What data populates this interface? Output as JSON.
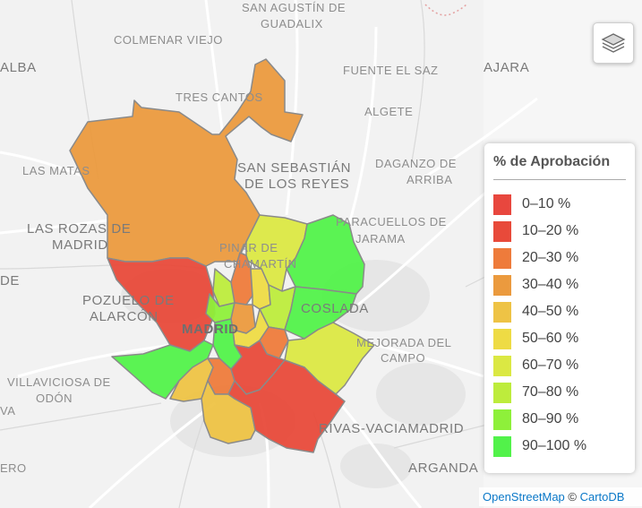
{
  "places": [
    {
      "id": "san-agustin",
      "text": "SAN AGUSTÍN DE"
    },
    {
      "id": "guadalix",
      "text": "GUADALIX"
    },
    {
      "id": "colmenar-viejo",
      "text": "COLMENAR VIEJO"
    },
    {
      "id": "alba",
      "text": "ALBA"
    },
    {
      "id": "fuente-el-saz",
      "text": "FUENTE EL SAZ"
    },
    {
      "id": "ajara",
      "text": "AJARA"
    },
    {
      "id": "tres-cantos",
      "text": "TRES CANTOS"
    },
    {
      "id": "algete",
      "text": "ALGETE"
    },
    {
      "id": "las-matas",
      "text": "LAS MATAS"
    },
    {
      "id": "san-sebastian-1",
      "text": "SAN SEBASTIÁN"
    },
    {
      "id": "san-sebastian-2",
      "text": "DE LOS REYES"
    },
    {
      "id": "daganzo-1",
      "text": "DAGANZO DE"
    },
    {
      "id": "daganzo-2",
      "text": "ARRIBA"
    },
    {
      "id": "las-rozas-1",
      "text": "LAS ROZAS DE"
    },
    {
      "id": "las-rozas-2",
      "text": "MADRID"
    },
    {
      "id": "paracuellos-1",
      "text": "PARACUELLOS DE"
    },
    {
      "id": "paracuellos-2",
      "text": "JARAMA"
    },
    {
      "id": "pinar-1",
      "text": "PINAR DE"
    },
    {
      "id": "pinar-2",
      "text": "CHAMARTÍN"
    },
    {
      "id": "de",
      "text": "DE"
    },
    {
      "id": "pozuelo-1",
      "text": "POZUELO DE"
    },
    {
      "id": "pozuelo-2",
      "text": "ALARCÓN"
    },
    {
      "id": "coslada",
      "text": "COSLADA"
    },
    {
      "id": "madrid",
      "text": "MADRID"
    },
    {
      "id": "mejorada-1",
      "text": "MEJORADA DEL"
    },
    {
      "id": "mejorada-2",
      "text": "CAMPO"
    },
    {
      "id": "villaviciosa-1",
      "text": "VILLAVICIOSA DE"
    },
    {
      "id": "villaviciosa-2",
      "text": "ODÓN"
    },
    {
      "id": "va",
      "text": "VA"
    },
    {
      "id": "rivas",
      "text": "RIVAS-VACIAMADRID"
    },
    {
      "id": "arganda",
      "text": "ARGANDA"
    },
    {
      "id": "ero",
      "text": "ERO"
    }
  ],
  "legend": {
    "title": "% de Aprobación",
    "items": [
      {
        "label": "0–10 %",
        "color": "#e8473e"
      },
      {
        "label": "10–20 %",
        "color": "#e84a3a"
      },
      {
        "label": "20–30 %",
        "color": "#ee7b3b"
      },
      {
        "label": "30–40 %",
        "color": "#eb9a3e"
      },
      {
        "label": "40–50 %",
        "color": "#eec345"
      },
      {
        "label": "50–60 %",
        "color": "#eedb44"
      },
      {
        "label": "60–70 %",
        "color": "#dbe843"
      },
      {
        "label": "70–80 %",
        "color": "#bdec3c"
      },
      {
        "label": "80–90 %",
        "color": "#8ef03a"
      },
      {
        "label": "90–100 %",
        "color": "#52f24a"
      }
    ]
  },
  "controls": {
    "layers_icon": "layers-icon"
  },
  "attribution": {
    "osm": "OpenStreetMap",
    "sep": " © ",
    "carto": "CartoDB"
  }
}
